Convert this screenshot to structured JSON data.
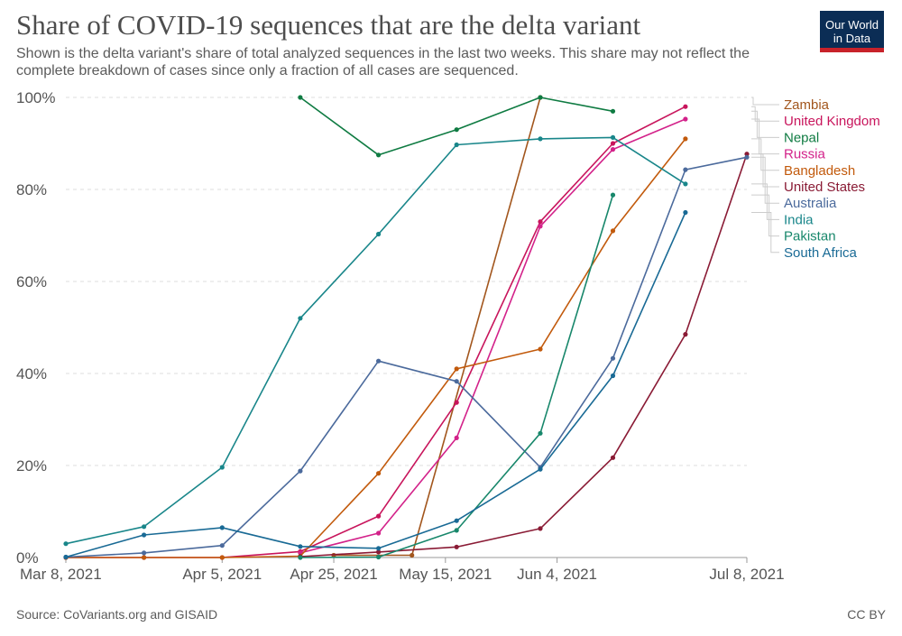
{
  "header": {
    "title": "Share of COVID-19 sequences that are the delta variant",
    "subtitle": "Shown is the delta variant's share of total analyzed sequences in the last two weeks. This share may not reflect the complete breakdown of cases since only a fraction of all cases are sequenced.",
    "logo_line1": "Our World",
    "logo_line2": "in Data"
  },
  "footer": {
    "source": "Source: CoVariants.org and GISAID",
    "license": "CC BY"
  },
  "chart_data": {
    "type": "line",
    "title": "Share of COVID-19 sequences that are the delta variant",
    "ylabel": "",
    "xlabel": "",
    "ylim": [
      0,
      100
    ],
    "y_ticks": [
      0,
      20,
      40,
      60,
      80,
      100
    ],
    "y_tick_labels": [
      "0%",
      "20%",
      "40%",
      "60%",
      "80%",
      "100%"
    ],
    "x_range_days": [
      0,
      122
    ],
    "x_ticks": [
      {
        "day": 0,
        "label": "Mar 8, 2021"
      },
      {
        "day": 28,
        "label": "Apr 5, 2021"
      },
      {
        "day": 48,
        "label": "Apr 25, 2021"
      },
      {
        "day": 68,
        "label": "May 15, 2021"
      },
      {
        "day": 88,
        "label": "Jun 4, 2021"
      },
      {
        "day": 122,
        "label": "Jul 8, 2021"
      }
    ],
    "grid": true,
    "series": [
      {
        "name": "Zambia",
        "color": "#a2561d",
        "points": [
          [
            48,
            0.5
          ],
          [
            62,
            0.5
          ],
          [
            85,
            100
          ]
        ]
      },
      {
        "name": "United Kingdom",
        "color": "#c8155c",
        "points": [
          [
            0,
            0
          ],
          [
            14,
            0
          ],
          [
            28,
            0
          ],
          [
            42,
            1.3
          ],
          [
            56,
            9
          ],
          [
            70,
            33.7
          ],
          [
            85,
            73
          ],
          [
            98,
            90
          ],
          [
            111,
            98
          ]
        ]
      },
      {
        "name": "Nepal",
        "color": "#0f7b42",
        "points": [
          [
            42,
            100
          ],
          [
            56,
            87.5
          ],
          [
            70,
            93
          ],
          [
            85,
            100
          ],
          [
            98,
            97
          ]
        ]
      },
      {
        "name": "Russia",
        "color": "#d3228a",
        "points": [
          [
            42,
            1
          ],
          [
            56,
            5.3
          ],
          [
            70,
            26
          ],
          [
            85,
            72
          ],
          [
            98,
            88.7
          ],
          [
            111,
            95.3
          ]
        ]
      },
      {
        "name": "Bangladesh",
        "color": "#c25a0c",
        "points": [
          [
            0,
            0
          ],
          [
            14,
            0
          ],
          [
            28,
            0
          ],
          [
            42,
            0.3
          ],
          [
            56,
            18.3
          ],
          [
            70,
            41
          ],
          [
            85,
            45.3
          ],
          [
            98,
            71
          ],
          [
            111,
            91
          ]
        ]
      },
      {
        "name": "United States",
        "color": "#8a1b35",
        "points": [
          [
            42,
            0.2
          ],
          [
            56,
            1.2
          ],
          [
            70,
            2.3
          ],
          [
            85,
            6.3
          ],
          [
            98,
            21.7
          ],
          [
            111,
            48.5
          ],
          [
            122,
            87.7
          ]
        ]
      },
      {
        "name": "Australia",
        "color": "#4b6a9c",
        "points": [
          [
            0,
            0.1
          ],
          [
            14,
            1
          ],
          [
            28,
            2.6
          ],
          [
            42,
            18.8
          ],
          [
            56,
            42.7
          ],
          [
            70,
            38.3
          ],
          [
            85,
            19.6
          ],
          [
            98,
            43.3
          ],
          [
            111,
            84.3
          ],
          [
            122,
            87
          ]
        ]
      },
      {
        "name": "India",
        "color": "#19868a",
        "points": [
          [
            0,
            3
          ],
          [
            14,
            6.7
          ],
          [
            28,
            19.6
          ],
          [
            42,
            52
          ],
          [
            56,
            70.3
          ],
          [
            70,
            89.7
          ],
          [
            85,
            91
          ],
          [
            98,
            91.3
          ],
          [
            111,
            81.2
          ]
        ]
      },
      {
        "name": "Pakistan",
        "color": "#18876b",
        "points": [
          [
            42,
            0
          ],
          [
            56,
            0.1
          ],
          [
            70,
            5.9
          ],
          [
            85,
            27
          ],
          [
            98,
            78.8
          ]
        ]
      },
      {
        "name": "South Africa",
        "color": "#196a95",
        "points": [
          [
            0,
            0.1
          ],
          [
            14,
            4.9
          ],
          [
            28,
            6.5
          ],
          [
            42,
            2.4
          ],
          [
            56,
            2
          ],
          [
            70,
            8
          ],
          [
            85,
            19.2
          ],
          [
            98,
            39.5
          ],
          [
            111,
            75
          ]
        ]
      }
    ]
  }
}
